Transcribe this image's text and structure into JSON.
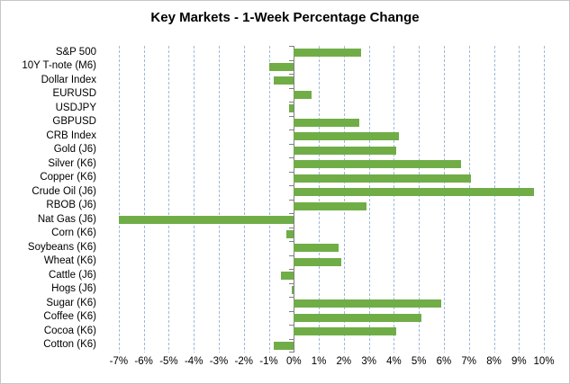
{
  "title": "Key Markets - 1-Week Percentage Change",
  "chart_data": {
    "type": "bar",
    "orientation": "horizontal",
    "title": "Key Markets - 1-Week Percentage Change",
    "categories": [
      "S&P 500",
      "10Y T-note (M6)",
      "Dollar Index",
      "EURUSD",
      "USDJPY",
      "GBPUSD",
      "CRB Index",
      "Gold (J6)",
      "Silver (K6)",
      "Copper (K6)",
      "Crude Oil (J6)",
      "RBOB (J6)",
      "Nat Gas (J6)",
      "Corn (K6)",
      "Soybeans (K6)",
      "Wheat (K6)",
      "Cattle (J6)",
      "Hogs (J6)",
      "Sugar (K6)",
      "Coffee (K6)",
      "Cocoa (K6)",
      "Cotton (K6)"
    ],
    "values": [
      2.7,
      -1.0,
      -0.8,
      0.7,
      -0.2,
      2.6,
      4.2,
      4.1,
      6.7,
      7.1,
      9.6,
      2.9,
      -7.0,
      -0.3,
      1.8,
      1.9,
      -0.5,
      -0.1,
      5.9,
      5.1,
      4.1,
      -0.8
    ],
    "unit": "%",
    "x_ticks": [
      -7,
      -6,
      -5,
      -4,
      -3,
      -2,
      -1,
      0,
      1,
      2,
      3,
      4,
      5,
      6,
      7,
      8,
      9,
      10
    ],
    "x_tick_labels": [
      "-7%",
      "-6%",
      "-5%",
      "-4%",
      "-3%",
      "-2%",
      "-1%",
      "0%",
      "1%",
      "2%",
      "3%",
      "4%",
      "5%",
      "6%",
      "7%",
      "8%",
      "9%",
      "10%"
    ],
    "xlim": [
      -7.5,
      10.25
    ],
    "grid": "vertical-dashed",
    "legend": "none",
    "bar_color": "#70AD47",
    "gridline_color": "#9DB9DC",
    "axis_color": "#7F7F7F",
    "text_color": "#000000"
  }
}
